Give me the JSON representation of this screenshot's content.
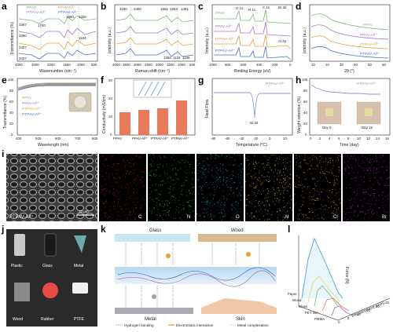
{
  "panels": {
    "a": {
      "label": "a",
      "xlabel": "Wavenumber (cm⁻¹)",
      "ylabel": "Transmittance (%)",
      "legend": [
        "PPAV",
        "PTPAV-Al³⁺",
        "PPAV-Al³⁺",
        "PTPAV-Al³⁺"
      ],
      "ticks_x": [
        "4000",
        "3000",
        "2000",
        "1500",
        "1000",
        "500"
      ],
      "annotations": [
        "3367",
        "1740",
        "3390",
        "3427",
        "3437",
        "1650",
        "1325",
        "1164"
      ]
    },
    "b": {
      "label": "b",
      "xlabel": "Raman shift (cm⁻¹)",
      "ylabel": "Intensity (a.u.)",
      "ticks_x": [
        "4000",
        "3500",
        "3000",
        "2500",
        "2000",
        "1500",
        "1000",
        "500"
      ],
      "annotations": [
        "3180",
        "3400",
        "1651",
        "1653",
        "1381",
        "1056",
        "1133",
        "1198"
      ]
    },
    "c": {
      "label": "c",
      "xlabel": "Binding Energy (eV)",
      "ylabel": "Intensity (a.u.)",
      "legend": [
        "PPAV",
        "PPAV-Al³⁺",
        "PTPAV-Al³⁺",
        "PTPAV-Al³⁺"
      ],
      "ticks_x": [
        "1000",
        "800",
        "600",
        "400",
        "200",
        "0"
      ],
      "annotations": [
        "O 1s",
        "N 1s",
        "C 1s",
        "Br 3d",
        "Al 2p"
      ]
    },
    "d": {
      "label": "d",
      "xlabel": "2θ (°)",
      "ylabel": "Intensity (a.u.)",
      "legend": [
        "PPAV",
        "PPAV-Al³⁺",
        "PTPAV-Al³⁺",
        "PTPAV-Al³⁺"
      ],
      "ticks_x": [
        "10",
        "20",
        "30",
        "40",
        "50",
        "60"
      ]
    },
    "e": {
      "label": "e",
      "xlabel": "Wavelength (nm)",
      "ylabel": "Transmittance (%)",
      "legend": [
        "PPAV",
        "PPAV-Al³⁺",
        "PTPAV-Al³⁺",
        "PTPAV-Al³⁺"
      ],
      "ticks_x": [
        "400",
        "500",
        "600",
        "700",
        "800"
      ],
      "ticks_y": [
        "0",
        "20",
        "40",
        "60",
        "80",
        "100"
      ]
    },
    "f": {
      "label": "f",
      "ylabel": "Conductivity (mS/cm)",
      "categories": [
        "PPAV",
        "PPAV-Al³⁺",
        "PTPAV-Al³⁺",
        "PTPAV-Al³⁺"
      ],
      "ticks_y": [
        "0",
        "10",
        "20",
        "30"
      ]
    },
    "g": {
      "label": "g",
      "xlabel": "Temperature (°C)",
      "ylabel": "Heat Flow",
      "series": "PTPAV-Al³⁺",
      "peak_label": "-32.34",
      "ticks_x": [
        "-80",
        "-60",
        "-40",
        "-20",
        "0",
        "20"
      ]
    },
    "h": {
      "label": "h",
      "xlabel": "Time (day)",
      "ylabel": "Weight retention (%)",
      "series": "PTPAV-Al³⁺",
      "day0": "Day 0",
      "day15": "Day 15",
      "ticks_x": [
        "0",
        "2",
        "4",
        "6",
        "8",
        "10",
        "12",
        "14",
        "16"
      ],
      "ticks_y": [
        "0",
        "20",
        "40",
        "60",
        "80",
        "100"
      ]
    },
    "i": {
      "label": "i",
      "sem_caption": "PTPAV-Al³⁺",
      "scalebar": "10 μm",
      "maps": [
        {
          "el": "C",
          "color": "#e0201e"
        },
        {
          "el": "N",
          "color": "#32c832"
        },
        {
          "el": "O",
          "color": "#1ec8dc"
        },
        {
          "el": "Al",
          "color": "#e6d21e"
        },
        {
          "el": "Cl",
          "color": "#e6a03c"
        },
        {
          "el": "Br",
          "color": "#d228d2"
        }
      ]
    },
    "j": {
      "label": "j",
      "items": [
        "Plastic",
        "Glass",
        "Metal",
        "Wood",
        "Rubber",
        "PTFE"
      ]
    },
    "k": {
      "label": "k",
      "top_left": "Glass",
      "top_right": "Wood",
      "bottom_left": "Metal",
      "bottom_right": "Skin",
      "legend": [
        "Hydrogen bonding",
        "Electrostatic interaction",
        "Metal complexation"
      ]
    },
    "l": {
      "label": "l",
      "zlabel": "Force (N)",
      "xlabel": "Displacement (mm)",
      "materials": [
        "Paper",
        "Wood",
        "Glass",
        "PET film",
        "PMMA"
      ],
      "xticks": [
        "0",
        "5",
        "10",
        "15",
        "20",
        "25"
      ]
    }
  }
}
